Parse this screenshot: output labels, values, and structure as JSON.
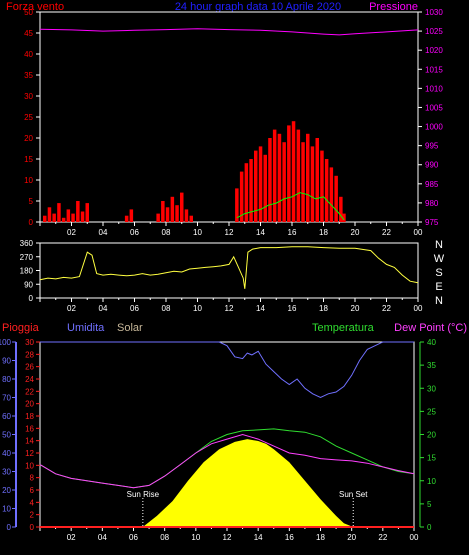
{
  "colors": {
    "background": "#000000",
    "axis": "#ffffff",
    "wind": "#ff0000",
    "gust": "#ff0000",
    "pressure": "#ff00ff",
    "direction": "#ffff40",
    "rain": "#ff2020",
    "humidity": "#7070ff",
    "solar": "#ffff00",
    "solar_label": "#c8b89a",
    "temperature": "#30dd30",
    "dew_point": "#ff40ff",
    "average": "#00ff00",
    "sun_marker": "#ffffff"
  },
  "chart_data": [
    {
      "id": "wind-pressure",
      "type": "bar+line",
      "title": "24 hour graph data  10 Aprile 2020",
      "left_label": "Forza vento",
      "right_label": "Pressione",
      "x_ticks": [
        "02",
        "04",
        "06",
        "08",
        "10",
        "12",
        "14",
        "16",
        "18",
        "20",
        "22",
        "00"
      ],
      "x_range": [
        0,
        24
      ],
      "y_left": {
        "range": [
          0,
          50
        ],
        "ticks": [
          0,
          5,
          10,
          15,
          20,
          25,
          30,
          35,
          40,
          45,
          50
        ]
      },
      "y_right": {
        "range": [
          975,
          1030
        ],
        "ticks": [
          975,
          980,
          985,
          990,
          995,
          1000,
          1005,
          1010,
          1015,
          1020,
          1025,
          1030
        ]
      },
      "series": [
        {
          "type": "bar",
          "axis": "left",
          "x": [
            0.3,
            0.6,
            0.9,
            1.2,
            1.5,
            1.8,
            2.1,
            2.4,
            2.7,
            3.0,
            5.5,
            5.8,
            7.5,
            7.8,
            8.1,
            8.4,
            8.7,
            9.0,
            9.3,
            9.6,
            12.5,
            12.8,
            13.1,
            13.4,
            13.7,
            14.0,
            14.3,
            14.6,
            14.9,
            15.2,
            15.5,
            15.8,
            16.1,
            16.4,
            16.7,
            17.0,
            17.3,
            17.6,
            17.9,
            18.2,
            18.5,
            18.8,
            19.1,
            19.3
          ],
          "values": [
            1.5,
            3.5,
            2.0,
            4.5,
            1.0,
            3.0,
            2.0,
            5.0,
            2.5,
            4.5,
            1.5,
            3.0,
            2.0,
            5.0,
            3.5,
            6.0,
            4.0,
            7.0,
            3.0,
            1.5,
            8.0,
            12.0,
            14.0,
            15.0,
            17.0,
            18.0,
            16.0,
            20.0,
            22.0,
            21.0,
            19.0,
            23.0,
            24.0,
            22.0,
            19.0,
            21.0,
            18.0,
            20.0,
            17.0,
            15.0,
            13.0,
            11.0,
            6.0,
            2.0
          ]
        },
        {
          "type": "line",
          "axis": "left",
          "x": [
            12.5,
            13.0,
            13.5,
            14.0,
            14.5,
            15.0,
            15.5,
            16.0,
            16.5,
            17.0,
            17.5,
            18.0,
            18.5,
            19.0,
            19.3
          ],
          "values": [
            1.0,
            2.0,
            2.5,
            3.0,
            4.0,
            4.5,
            5.5,
            6.0,
            7.0,
            6.5,
            5.5,
            6.0,
            4.0,
            2.0,
            0.5
          ]
        },
        {
          "type": "line",
          "axis": "right",
          "x": [
            0,
            2,
            4,
            6,
            8,
            10,
            12,
            14,
            16,
            18,
            19,
            20,
            22,
            24
          ],
          "values": [
            1025.5,
            1025.3,
            1025.0,
            1025.2,
            1025.4,
            1025.6,
            1025.4,
            1025.2,
            1024.8,
            1024.2,
            1024.0,
            1024.3,
            1024.8,
            1025.3
          ]
        }
      ]
    },
    {
      "id": "wind-direction",
      "type": "line",
      "x_ticks": [
        "02",
        "04",
        "06",
        "08",
        "10",
        "12",
        "14",
        "16",
        "18",
        "20",
        "22",
        "00"
      ],
      "x_range": [
        0,
        24
      ],
      "y": {
        "range": [
          0,
          360
        ],
        "ticks": [
          0,
          90,
          180,
          270,
          360
        ]
      },
      "compass_labels": [
        "N",
        "W",
        "S",
        "E",
        "N"
      ],
      "series": [
        {
          "type": "line",
          "x": [
            0,
            0.5,
            1.0,
            1.5,
            2.0,
            2.5,
            3.0,
            3.3,
            3.6,
            4.0,
            4.5,
            5.0,
            5.5,
            6.0,
            6.5,
            7.0,
            7.5,
            8.0,
            8.5,
            9.0,
            9.5,
            10.0,
            10.5,
            11.0,
            11.5,
            12.0,
            12.3,
            12.6,
            12.9,
            13.0,
            13.2,
            13.5,
            14.0,
            15.0,
            16.0,
            17.0,
            18.0,
            19.0,
            20.0,
            21.0,
            21.5,
            22.0,
            22.5,
            23.0,
            23.5,
            24.0
          ],
          "values": [
            120,
            130,
            125,
            135,
            130,
            140,
            300,
            280,
            160,
            150,
            155,
            150,
            145,
            150,
            160,
            150,
            155,
            165,
            175,
            170,
            190,
            195,
            200,
            205,
            210,
            220,
            270,
            200,
            130,
            60,
            300,
            320,
            330,
            330,
            335,
            335,
            330,
            325,
            325,
            310,
            260,
            220,
            200,
            150,
            110,
            100
          ]
        }
      ]
    },
    {
      "id": "climate",
      "type": "area+line",
      "labels": {
        "rain": "Pioggia",
        "humidity": "Umidita",
        "solar": "Solar",
        "temperature": "Temperatura",
        "dew_point": "Dew Point (°C)"
      },
      "sun_rise_label": "Sun Rise",
      "sun_set_label": "Sun Set",
      "sun_rise_hour": 6.6,
      "sun_set_hour": 20.1,
      "x_ticks": [
        "02",
        "04",
        "06",
        "08",
        "10",
        "12",
        "14",
        "16",
        "18",
        "20",
        "22",
        "00"
      ],
      "x_range": [
        0,
        24
      ],
      "y_humidity": {
        "range": [
          0,
          100
        ],
        "ticks": [
          0,
          10,
          20,
          30,
          40,
          50,
          60,
          70,
          80,
          90,
          100
        ]
      },
      "y_rain": {
        "range": [
          0,
          30
        ],
        "ticks": [
          0,
          2,
          4,
          6,
          8,
          10,
          12,
          14,
          16,
          18,
          20,
          22,
          24,
          26,
          28,
          30
        ]
      },
      "y_temperature": {
        "range": [
          0,
          40
        ],
        "ticks": [
          0,
          5,
          10,
          15,
          20,
          25,
          30,
          35,
          40
        ]
      },
      "series": [
        {
          "name": "Umidita",
          "axis": "humidity",
          "x": [
            0,
            5,
            10,
            11,
            11.5,
            12,
            12.5,
            13,
            13.3,
            13.6,
            14,
            14.5,
            15,
            15.5,
            16,
            16.5,
            17,
            17.5,
            18,
            18.5,
            19,
            19.5,
            20,
            20.5,
            21,
            22,
            23,
            24
          ],
          "values": [
            100,
            100,
            100,
            100,
            100,
            98,
            92,
            91,
            94,
            93,
            95,
            88,
            84,
            80,
            77,
            80,
            75,
            72,
            70,
            72,
            73,
            76,
            82,
            90,
            96,
            100,
            100,
            100
          ]
        },
        {
          "name": "Solar",
          "axis": "humidity",
          "x": [
            6.6,
            7.5,
            8.5,
            9.5,
            10.5,
            11.5,
            12.5,
            13.3,
            14,
            14.5,
            15,
            16,
            17,
            18,
            19,
            19.5,
            20.1
          ],
          "values": [
            0,
            6,
            14,
            25,
            35,
            42,
            46,
            47.5,
            46.5,
            45,
            42,
            35,
            25,
            15,
            6,
            2,
            0
          ]
        },
        {
          "name": "Temperatura",
          "axis": "temperature",
          "x": [
            0,
            1,
            2,
            3,
            4,
            5,
            6,
            7,
            8,
            9,
            10,
            11,
            12,
            13,
            14,
            15,
            16,
            17,
            18,
            19,
            20,
            21,
            22,
            23,
            24
          ],
          "values": [
            13.5,
            11.5,
            10.5,
            10.0,
            9.5,
            9.0,
            8.5,
            9.0,
            11.0,
            13.5,
            16.0,
            18.5,
            20.0,
            20.8,
            21.0,
            21.2,
            20.8,
            20.5,
            19.5,
            17.5,
            16.0,
            14.5,
            13.0,
            12.0,
            11.5
          ]
        },
        {
          "name": "Dew Point",
          "axis": "temperature",
          "x": [
            0,
            1,
            2,
            3,
            4,
            5,
            6,
            7,
            8,
            9,
            10,
            11,
            12,
            13,
            13.5,
            14,
            15,
            16,
            17,
            18,
            19,
            20,
            21,
            22,
            23,
            24
          ],
          "values": [
            13.5,
            11.5,
            10.5,
            10.0,
            9.5,
            9.0,
            8.5,
            9.0,
            11.0,
            13.5,
            16.0,
            18.0,
            19.0,
            20.0,
            19.5,
            19.0,
            17.5,
            16.0,
            15.5,
            14.8,
            14.5,
            14.3,
            13.8,
            13.0,
            12.2,
            11.5
          ]
        },
        {
          "name": "Pioggia",
          "axis": "rain",
          "x": [
            0,
            24
          ],
          "values": [
            0,
            0
          ]
        }
      ]
    }
  ]
}
